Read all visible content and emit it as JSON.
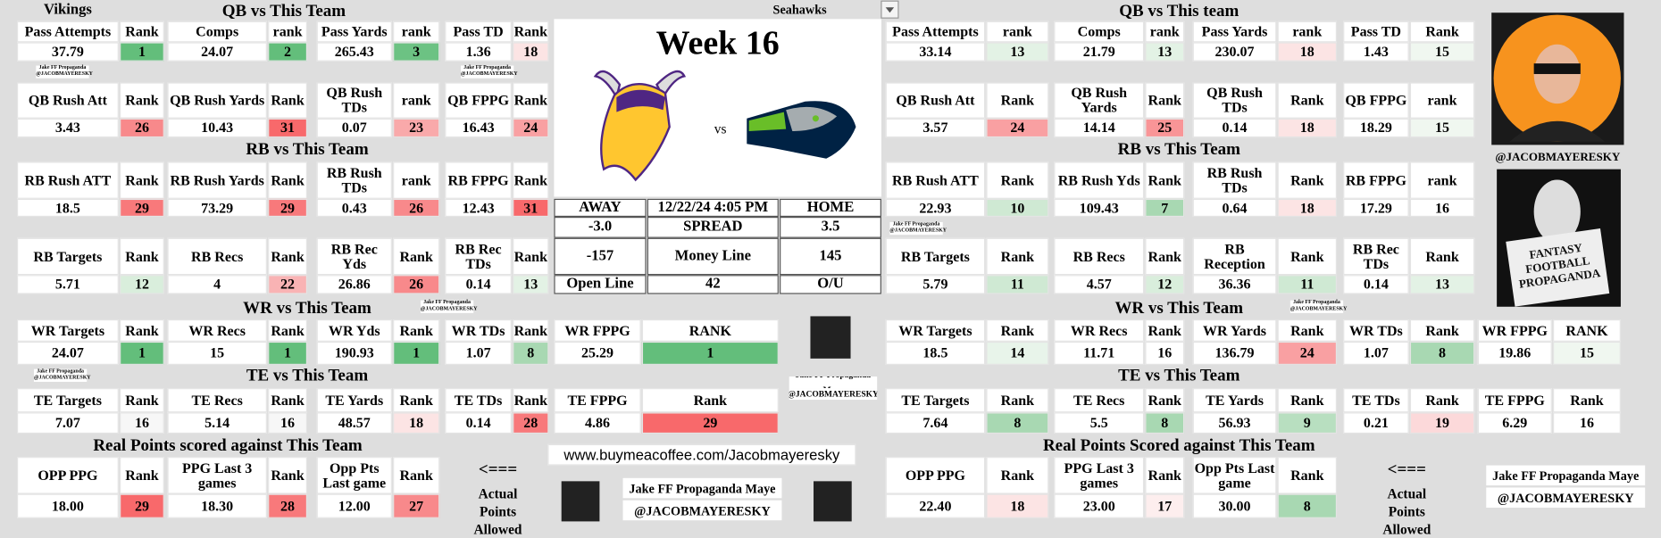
{
  "left": {
    "team": "Vikings",
    "sections": [
      {
        "title": "QB vs This Team",
        "rows": [
          [
            {
              "label": "Pass Attempts",
              "value": "37.79"
            },
            {
              "label": "Rank",
              "value": "1",
              "color": "#63be7b"
            },
            {
              "label": "Comps",
              "value": "24.07"
            },
            {
              "label": "rank",
              "value": "2",
              "color": "#63be7b"
            },
            {
              "label": "Pass Yards",
              "value": "265.43"
            },
            {
              "label": "rank",
              "value": "3",
              "color": "#6cc283"
            },
            {
              "label": "Pass TD",
              "value": "1.36"
            },
            {
              "label": "Rank",
              "value": "18",
              "color": "#fce4e4"
            }
          ],
          [
            {
              "label": "QB Rush Att",
              "value": "3.43"
            },
            {
              "label": "Rank",
              "value": "26",
              "color": "#f8898b"
            },
            {
              "label": "QB Rush Yards",
              "value": "10.43"
            },
            {
              "label": "Rank",
              "value": "31",
              "color": "#f8696b"
            },
            {
              "label": "QB Rush TDs",
              "value": "0.07"
            },
            {
              "label": "rank",
              "value": "23",
              "color": "#f9a9aa"
            },
            {
              "label": "QB FPPG",
              "value": "16.43"
            },
            {
              "label": "Rank",
              "value": "24",
              "color": "#f9a0a2"
            }
          ]
        ]
      },
      {
        "title": "RB vs This Team",
        "rows": [
          [
            {
              "label": "RB Rush ATT",
              "value": "18.5"
            },
            {
              "label": "Rank",
              "value": "29",
              "color": "#f8797b"
            },
            {
              "label": "RB Rush Yards",
              "value": "73.29"
            },
            {
              "label": "Rank",
              "value": "29",
              "color": "#f8797b"
            },
            {
              "label": "RB Rush TDs",
              "value": "0.43"
            },
            {
              "label": "rank",
              "value": "26",
              "color": "#f8898b"
            },
            {
              "label": "RB FPPG",
              "value": "12.43"
            },
            {
              "label": "Rank",
              "value": "31",
              "color": "#f8696b"
            }
          ],
          [
            {
              "label": "RB Targets",
              "value": "5.71"
            },
            {
              "label": "Rank",
              "value": "12",
              "color": "#d9eedc"
            },
            {
              "label": "RB Recs",
              "value": "4"
            },
            {
              "label": "Rank",
              "value": "22",
              "color": "#f9b3b4"
            },
            {
              "label": "RB Rec Yds",
              "value": "26.86"
            },
            {
              "label": "Rank",
              "value": "26",
              "color": "#f8898b"
            },
            {
              "label": "RB Rec TDs",
              "value": "0.14"
            },
            {
              "label": "Rank",
              "value": "13",
              "color": "#e3f2e5"
            }
          ]
        ]
      },
      {
        "title": "WR vs This Team",
        "rows": [
          [
            {
              "label": "WR Targets",
              "value": "24.07"
            },
            {
              "label": "Rank",
              "value": "1",
              "color": "#63be7b"
            },
            {
              "label": "WR Recs",
              "value": "15"
            },
            {
              "label": "Rank",
              "value": "1",
              "color": "#63be7b"
            },
            {
              "label": "WR Yds",
              "value": "190.93"
            },
            {
              "label": "Rank",
              "value": "1",
              "color": "#63be7b"
            },
            {
              "label": "WR TDs",
              "value": "1.07"
            },
            {
              "label": "Rank",
              "value": "8",
              "color": "#a8d8b2"
            },
            {
              "label": "WR FPPG",
              "value": "25.29"
            },
            {
              "label": "RANK",
              "value": "1",
              "color": "#63be7b"
            }
          ]
        ]
      },
      {
        "title": "TE vs This Team",
        "rows": [
          [
            {
              "label": "TE Targets",
              "value": "7.07"
            },
            {
              "label": "Rank",
              "value": "16",
              "color": "#f7f7f7"
            },
            {
              "label": "TE Recs",
              "value": "5.14"
            },
            {
              "label": "Rank",
              "value": "16",
              "color": "#f7f7f7"
            },
            {
              "label": "TE Yards",
              "value": "48.57"
            },
            {
              "label": "Rank",
              "value": "18",
              "color": "#fce4e4"
            },
            {
              "label": "TE TDs",
              "value": "0.14"
            },
            {
              "label": "Rank",
              "value": "28",
              "color": "#f8797b"
            },
            {
              "label": "TE FPPG",
              "value": "4.86"
            },
            {
              "label": "Rank",
              "value": "29",
              "color": "#f8696b"
            }
          ]
        ]
      },
      {
        "title": "Real Points scored against This Team",
        "rows": [
          [
            {
              "label": "OPP PPG",
              "value": "18.00"
            },
            {
              "label": "Rank",
              "value": "29",
              "color": "#f8696b"
            },
            {
              "label": "PPG Last 3 games",
              "value": "18.30"
            },
            {
              "label": "Rank",
              "value": "28",
              "color": "#f8797b"
            },
            {
              "label": "Opp Pts Last game",
              "value": "12.00"
            },
            {
              "label": "Rank",
              "value": "27",
              "color": "#f8898b"
            }
          ]
        ]
      }
    ]
  },
  "right": {
    "team": "Seahawks",
    "sections": [
      {
        "title": "QB vs This team",
        "rows": [
          [
            {
              "label": "Pass Attempts",
              "value": "33.14"
            },
            {
              "label": "rank",
              "value": "13",
              "color": "#e3f2e5"
            },
            {
              "label": "Comps",
              "value": "21.79"
            },
            {
              "label": "rank",
              "value": "13",
              "color": "#e3f2e5"
            },
            {
              "label": "Pass Yards",
              "value": "230.07"
            },
            {
              "label": "rank",
              "value": "18",
              "color": "#fce4e4"
            },
            {
              "label": "Pass TD",
              "value": "1.43"
            },
            {
              "label": "Rank",
              "value": "15",
              "color": "#f0f7f0"
            }
          ],
          [
            {
              "label": "QB Rush Att",
              "value": "3.57"
            },
            {
              "label": "Rank",
              "value": "24",
              "color": "#f9a0a2"
            },
            {
              "label": "QB Rush Yards",
              "value": "14.14"
            },
            {
              "label": "Rank",
              "value": "25",
              "color": "#f99597"
            },
            {
              "label": "QB Rush TDs",
              "value": "0.14"
            },
            {
              "label": "Rank",
              "value": "18",
              "color": "#fce4e4"
            },
            {
              "label": "QB FPPG",
              "value": "18.29"
            },
            {
              "label": "rank",
              "value": "15",
              "color": "#f0f7f0"
            }
          ]
        ]
      },
      {
        "title": "RB vs This Team",
        "rows": [
          [
            {
              "label": "RB Rush ATT",
              "value": "22.93"
            },
            {
              "label": "Rank",
              "value": "10",
              "color": "#cfe9d3"
            },
            {
              "label": "RB Rush Yds",
              "value": "109.43"
            },
            {
              "label": "Rank",
              "value": "7",
              "color": "#a8d8b2"
            },
            {
              "label": "RB Rush TDs",
              "value": "0.64"
            },
            {
              "label": "Rank",
              "value": "18",
              "color": "#fce4e4"
            },
            {
              "label": "RB FPPG",
              "value": "17.29"
            },
            {
              "label": "rank",
              "value": "16",
              "color": "#ffffff"
            }
          ],
          [
            {
              "label": "RB Targets",
              "value": "5.79"
            },
            {
              "label": "Rank",
              "value": "11",
              "color": "#cfe9d3"
            },
            {
              "label": "RB Recs",
              "value": "4.57"
            },
            {
              "label": "Rank",
              "value": "12",
              "color": "#d9eedc"
            },
            {
              "label": "RB Reception",
              "value": "36.36"
            },
            {
              "label": "Rank",
              "value": "11",
              "color": "#cfe9d3"
            },
            {
              "label": "RB Rec TDs",
              "value": "0.14"
            },
            {
              "label": "Rank",
              "value": "13",
              "color": "#e3f2e5"
            }
          ]
        ]
      },
      {
        "title": "WR vs This Team",
        "rows": [
          [
            {
              "label": "WR Targets",
              "value": "18.5"
            },
            {
              "label": "Rank",
              "value": "14",
              "color": "#e8f4ea"
            },
            {
              "label": "WR Recs",
              "value": "11.71"
            },
            {
              "label": "Rank",
              "value": "16",
              "color": "#ffffff"
            },
            {
              "label": "WR Yards",
              "value": "136.79"
            },
            {
              "label": "Rank",
              "value": "24",
              "color": "#f9a0a2"
            },
            {
              "label": "WR TDs",
              "value": "1.07"
            },
            {
              "label": "Rank",
              "value": "8",
              "color": "#a8d8b2"
            },
            {
              "label": "WR FPPG",
              "value": "19.86"
            },
            {
              "label": "RANK",
              "value": "15",
              "color": "#f0f7f0"
            }
          ]
        ]
      },
      {
        "title": "TE vs This Team",
        "rows": [
          [
            {
              "label": "TE Targets",
              "value": "7.64"
            },
            {
              "label": "Rank",
              "value": "8",
              "color": "#a8d8b2"
            },
            {
              "label": "TE Recs",
              "value": "5.5"
            },
            {
              "label": "Rank",
              "value": "8",
              "color": "#a8d8b2"
            },
            {
              "label": "TE Yards",
              "value": "56.93"
            },
            {
              "label": "Rank",
              "value": "9",
              "color": "#b8dfc0"
            },
            {
              "label": "TE TDs",
              "value": "0.21"
            },
            {
              "label": "Rank",
              "value": "19",
              "color": "#fcd9da"
            },
            {
              "label": "TE FPPG",
              "value": "6.29"
            },
            {
              "label": "Rank",
              "value": "16",
              "color": "#ffffff"
            }
          ]
        ]
      },
      {
        "title": "Real Points Scored against This Team",
        "rows": [
          [
            {
              "label": "OPP PPG",
              "value": "22.40"
            },
            {
              "label": "Rank",
              "value": "18",
              "color": "#fce4e4"
            },
            {
              "label": "PPG Last 3 games",
              "value": "23.00"
            },
            {
              "label": "Rank",
              "value": "17",
              "color": "#fdeeee"
            },
            {
              "label": "Opp Pts Last game",
              "value": "30.00"
            },
            {
              "label": "Rank",
              "value": "8",
              "color": "#a8d8b2"
            }
          ]
        ]
      }
    ]
  },
  "center": {
    "week": "Week 16",
    "vs": "vs",
    "odds": [
      [
        "AWAY",
        "12/22/24 4:05 PM",
        "HOME"
      ],
      [
        "-3.0",
        "SPREAD",
        "3.5"
      ],
      [
        "-157",
        "Money Line",
        "145"
      ],
      [
        "Open Line",
        "42",
        "O/U"
      ]
    ]
  },
  "coffee": "www.buymeacoffee.com/Jacobmayeresky",
  "arrow_note": {
    "arrow": "<===",
    "text": "Actual Points Allowed"
  },
  "brand": {
    "name": "Jake FF Propaganda Maye",
    "handle": "@JACOBMAYERESKY"
  },
  "badge": "FANTASY FOOTBALL PROPAGANDA"
}
